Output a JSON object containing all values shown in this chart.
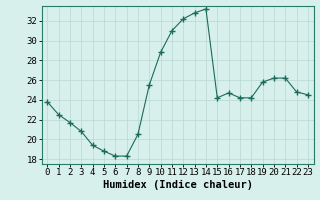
{
  "x": [
    0,
    1,
    2,
    3,
    4,
    5,
    6,
    7,
    8,
    9,
    10,
    11,
    12,
    13,
    14,
    15,
    16,
    17,
    18,
    19,
    20,
    21,
    22,
    23
  ],
  "y": [
    23.8,
    22.5,
    21.7,
    20.8,
    19.4,
    18.8,
    18.3,
    18.3,
    20.5,
    25.5,
    28.8,
    31.0,
    32.2,
    32.8,
    33.2,
    24.2,
    24.7,
    24.2,
    24.2,
    25.8,
    26.2,
    26.2,
    24.8,
    24.5
  ],
  "line_color": "#1a6b5a",
  "marker": "+",
  "marker_size": 4,
  "bg_color": "#d8f0ec",
  "grid_color": "#b8d8d0",
  "xlabel": "Humidex (Indice chaleur)",
  "xlim": [
    -0.5,
    23.5
  ],
  "ylim": [
    17.5,
    33.5
  ],
  "yticks": [
    18,
    20,
    22,
    24,
    26,
    28,
    30,
    32
  ],
  "xticks": [
    0,
    1,
    2,
    3,
    4,
    5,
    6,
    7,
    8,
    9,
    10,
    11,
    12,
    13,
    14,
    15,
    16,
    17,
    18,
    19,
    20,
    21,
    22,
    23
  ],
  "xtick_labels": [
    "0",
    "1",
    "2",
    "3",
    "4",
    "5",
    "6",
    "7",
    "8",
    "9",
    "10",
    "11",
    "12",
    "13",
    "14",
    "15",
    "16",
    "17",
    "18",
    "19",
    "20",
    "21",
    "22",
    "23"
  ],
  "xlabel_fontsize": 7.5,
  "tick_fontsize": 6.5,
  "spine_color": "#2a7a6a"
}
